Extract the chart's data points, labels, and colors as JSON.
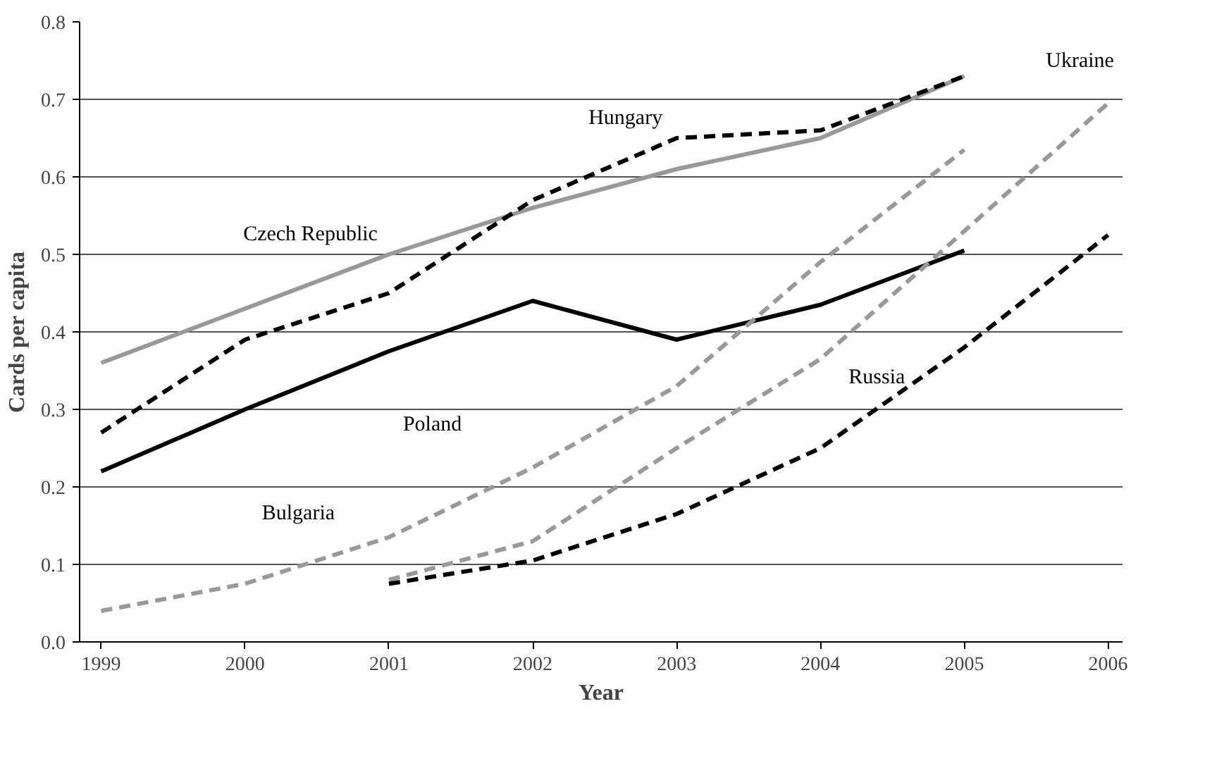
{
  "chart_data": {
    "type": "line",
    "xlabel": "Year",
    "ylabel": "Cards per capita",
    "xlim": [
      1998.85,
      2006.1
    ],
    "ylim": [
      0,
      0.8
    ],
    "xticks": [
      1999,
      2000,
      2001,
      2002,
      2003,
      2004,
      2005,
      2006
    ],
    "yticks": [
      {
        "value": 0,
        "label": "0.0"
      },
      0.1,
      0.2,
      0.3,
      0.4,
      0.5,
      0.6,
      0.7,
      0.8
    ],
    "grid": "y",
    "marker": "none",
    "series": [
      {
        "name": "Czech Republic",
        "color": "#999999",
        "line_style": "solid",
        "x": [
          1999,
          2001,
          2002,
          2003,
          2004,
          2005
        ],
        "values": [
          0.36,
          0.5,
          0.56,
          0.61,
          0.65,
          0.73
        ]
      },
      {
        "name": "Hungary",
        "color": "#000000",
        "line_style": "dashed",
        "x": [
          1999,
          2000,
          2001,
          2002,
          2003,
          2004,
          2005
        ],
        "values": [
          0.27,
          0.39,
          0.45,
          0.57,
          0.65,
          0.66,
          0.73
        ]
      },
      {
        "name": "Poland",
        "color": "#000000",
        "line_style": "solid",
        "x": [
          1999,
          2000,
          2001,
          2002,
          2003,
          2004,
          2005
        ],
        "values": [
          0.22,
          0.3,
          0.375,
          0.44,
          0.39,
          0.435,
          0.505
        ]
      },
      {
        "name": "Bulgaria",
        "color": "#999999",
        "line_style": "dashed",
        "x": [
          1999,
          2000,
          2001,
          2002,
          2003,
          2004,
          2005
        ],
        "values": [
          0.04,
          0.075,
          0.135,
          0.225,
          0.33,
          0.49,
          0.635
        ]
      },
      {
        "name": "Ukraine",
        "color": "#999999",
        "line_style": "dashed",
        "x": [
          2001,
          2002,
          2003,
          2004,
          2005,
          2006
        ],
        "values": [
          0.08,
          0.13,
          0.25,
          0.365,
          0.53,
          0.695
        ]
      },
      {
        "name": "Russia",
        "color": "#000000",
        "line_style": "dashed",
        "x": [
          2001,
          2002,
          2003,
          2004,
          2005,
          2006
        ],
        "values": [
          0.075,
          0.105,
          0.165,
          0.25,
          0.38,
          0.525
        ]
      }
    ]
  }
}
